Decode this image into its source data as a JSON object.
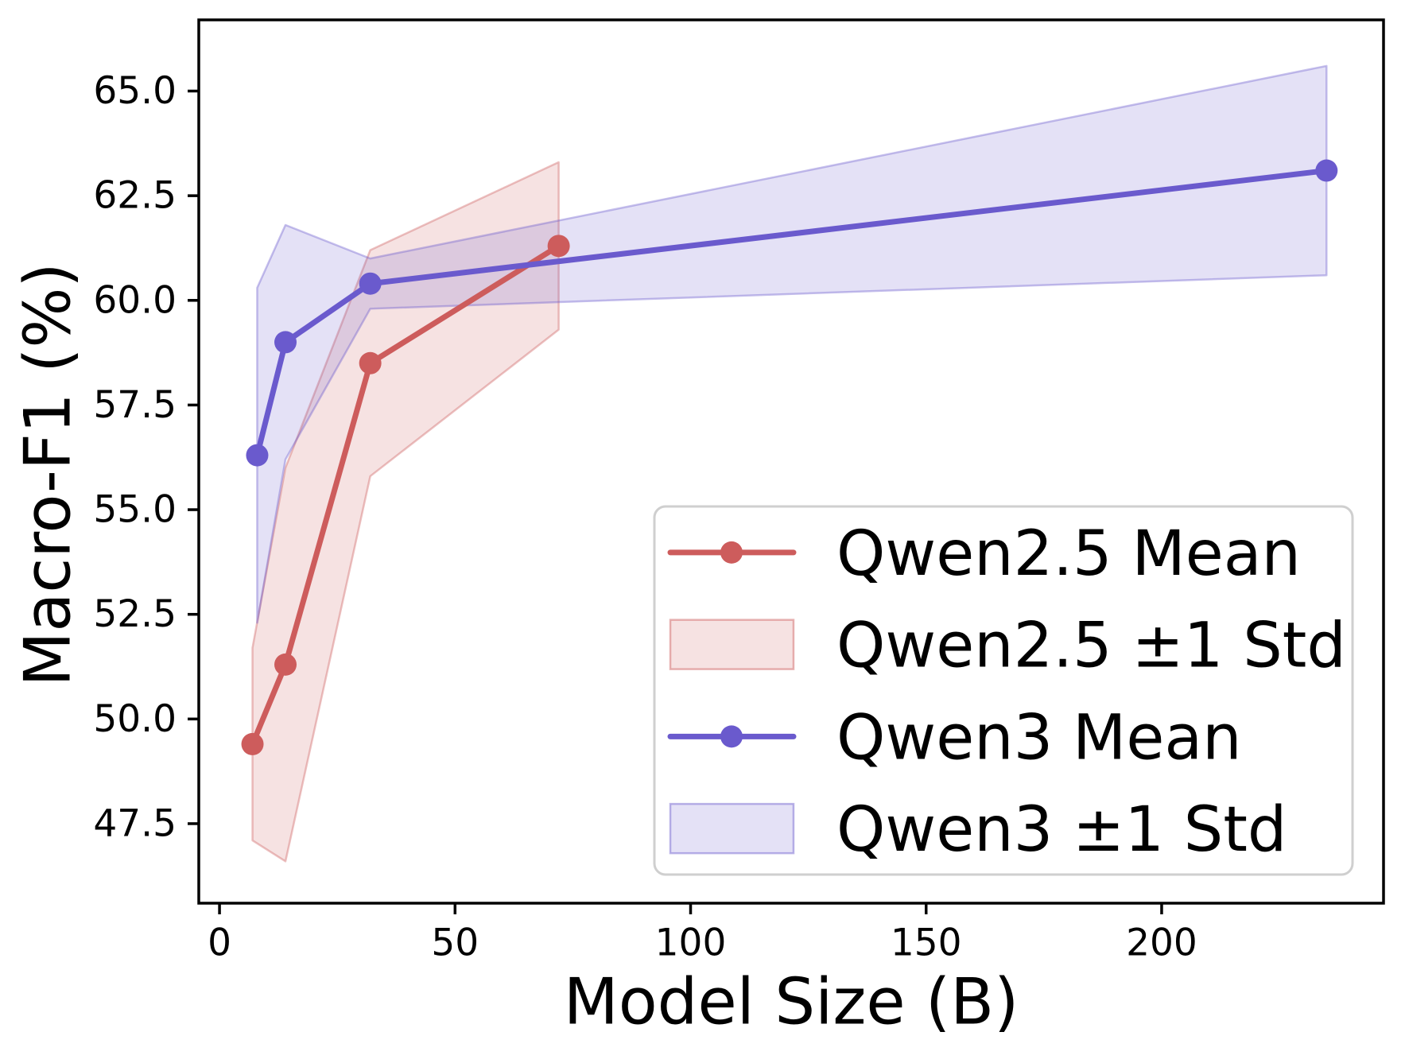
{
  "chart_data": {
    "type": "line",
    "title": "",
    "xlabel": "Model Size (B)",
    "ylabel": "Macro-F1 (%)",
    "xlim": [
      -4.4,
      247.1
    ],
    "ylim": [
      45.6,
      66.7
    ],
    "xticks": [
      "0",
      "50",
      "100",
      "150",
      "200"
    ],
    "yticks": [
      "47.5",
      "50.0",
      "52.5",
      "55.0",
      "57.5",
      "60.0",
      "62.5",
      "65.0"
    ],
    "grid": false,
    "legend_position": "lower right",
    "series": [
      {
        "name": "Qwen2.5 Mean",
        "band_name": "Qwen2.5 ±1 Std",
        "color": "#CD5C5C",
        "x": [
          7,
          14,
          32,
          72
        ],
        "mean": [
          49.4,
          51.3,
          58.5,
          61.3
        ],
        "std": [
          2.3,
          4.7,
          2.7,
          2.0
        ]
      },
      {
        "name": "Qwen3 Mean",
        "band_name": "Qwen3 ±1 Std",
        "color": "#6A5ACD",
        "x": [
          8,
          14,
          32,
          235
        ],
        "mean": [
          56.3,
          59.0,
          60.4,
          63.1
        ],
        "std": [
          4.0,
          2.8,
          0.6,
          2.5
        ]
      }
    ],
    "legend": [
      {
        "type": "line",
        "label": "Qwen2.5 Mean",
        "color": "#CD5C5C"
      },
      {
        "type": "patch",
        "label": "Qwen2.5 ±1 Std",
        "color": "#CD5C5C"
      },
      {
        "type": "line",
        "label": "Qwen3 Mean",
        "color": "#6A5ACD"
      },
      {
        "type": "patch",
        "label": "Qwen3 ±1 Std",
        "color": "#6A5ACD"
      }
    ]
  }
}
